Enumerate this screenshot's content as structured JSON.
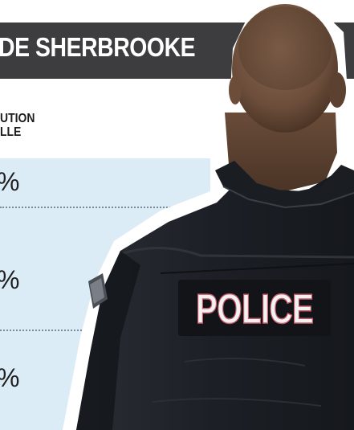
{
  "banner": {
    "title": "DE SHERBROOKE"
  },
  "column_header": {
    "line1": "UTION",
    "line2": "LLE"
  },
  "rows": [
    {
      "value": "%"
    },
    {
      "value": "%"
    },
    {
      "value": "%"
    }
  ],
  "vest": {
    "label": "POLICE"
  },
  "colors": {
    "banner": "#3d3d3f",
    "band": "#dcecf6",
    "uniform": "#1f2328",
    "skin": "#7a5a45"
  }
}
